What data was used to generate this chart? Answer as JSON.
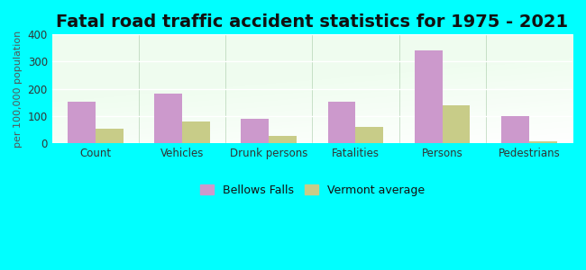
{
  "title": "Fatal road traffic accident statistics for 1975 - 2021",
  "ylabel": "per 100,000 population",
  "categories": [
    "Count",
    "Vehicles",
    "Drunk persons",
    "Fatalities",
    "Persons",
    "Pedestrians"
  ],
  "bellows_falls": [
    152,
    183,
    88,
    152,
    342,
    98
  ],
  "vermont_avg": [
    52,
    78,
    27,
    60,
    138,
    5
  ],
  "bellows_color": "#cc99cc",
  "vermont_color": "#c8cc88",
  "ylim": [
    0,
    400
  ],
  "yticks": [
    0,
    100,
    200,
    300,
    400
  ],
  "background_color": "#00ffff",
  "title_fontsize": 14,
  "legend_bellows": "Bellows Falls",
  "legend_vermont": "Vermont average",
  "bar_width": 0.32,
  "grid_color": "#ffffff",
  "tick_label_color": "#333333",
  "ylabel_color": "#555555"
}
